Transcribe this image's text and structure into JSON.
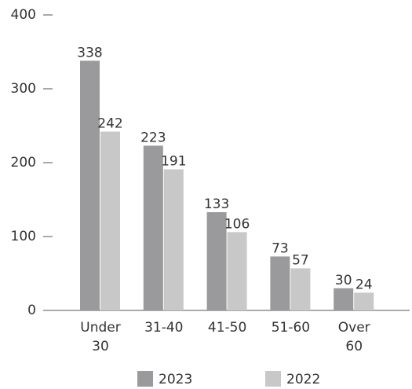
{
  "chart_data": {
    "type": "bar",
    "categories": [
      "Under 30",
      "31-40",
      "41-50",
      "51-60",
      "Over 60"
    ],
    "series": [
      {
        "name": "2023",
        "color": "#9a9a9c",
        "values": [
          338,
          223,
          133,
          73,
          30
        ]
      },
      {
        "name": "2022",
        "color": "#c8c8c9",
        "values": [
          242,
          191,
          106,
          57,
          24
        ]
      }
    ],
    "ylim": [
      0,
      400
    ],
    "yticks": [
      0,
      100,
      200,
      300,
      400
    ],
    "legend": "bottom"
  }
}
